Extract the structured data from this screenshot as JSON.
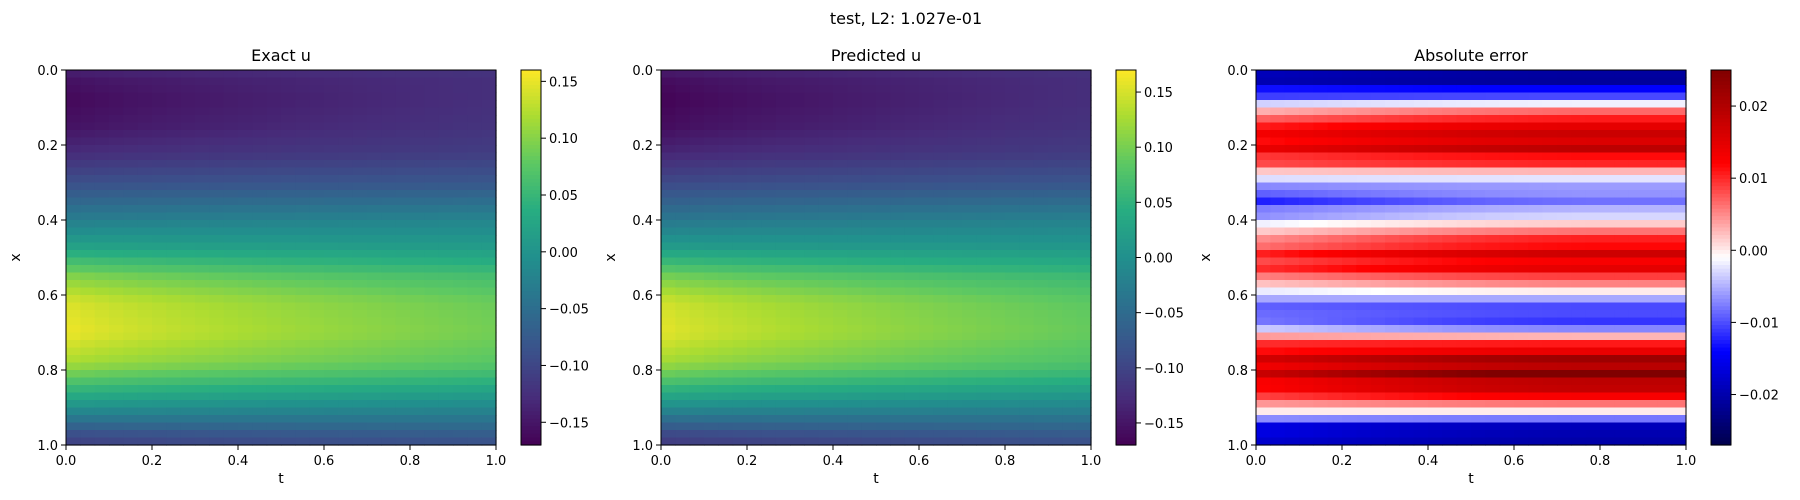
{
  "figure": {
    "title": "test, L2: 1.027e-01"
  },
  "chart_data": [
    {
      "type": "heatmap",
      "title": "Exact u",
      "xlabel": "t",
      "ylabel": "x",
      "xlim": [
        0.0,
        1.0
      ],
      "ylim": [
        1.0,
        0.0
      ],
      "xticks": [
        "0.0",
        "0.2",
        "0.4",
        "0.6",
        "0.8",
        "1.0"
      ],
      "yticks": [
        "0.0",
        "0.2",
        "0.4",
        "0.6",
        "0.8",
        "1.0"
      ],
      "colormap": "viridis",
      "color_range": [
        -0.17,
        0.16
      ],
      "colorbar_ticks": [
        "0.15",
        "0.10",
        "0.05",
        "0.00",
        "−0.05",
        "−0.10",
        "−0.15"
      ],
      "profile_x": [
        0.0,
        0.03,
        0.08,
        0.15,
        0.22,
        0.3,
        0.4,
        0.47,
        0.55,
        0.62,
        0.7,
        0.78,
        0.82,
        0.88,
        0.93,
        0.97,
        1.0
      ],
      "profile_u_t0": [
        -0.14,
        -0.155,
        -0.165,
        -0.155,
        -0.13,
        -0.09,
        -0.03,
        0.02,
        0.1,
        0.145,
        0.155,
        0.12,
        0.08,
        0.02,
        -0.04,
        -0.09,
        -0.11
      ],
      "profile_u_t1": [
        -0.12,
        -0.125,
        -0.125,
        -0.12,
        -0.11,
        -0.08,
        -0.02,
        0.01,
        0.06,
        0.085,
        0.09,
        0.075,
        0.05,
        0.0,
        -0.04,
        -0.07,
        -0.09
      ]
    },
    {
      "type": "heatmap",
      "title": "Predicted u",
      "xlabel": "t",
      "ylabel": "x",
      "xlim": [
        0.0,
        1.0
      ],
      "ylim": [
        1.0,
        0.0
      ],
      "xticks": [
        "0.0",
        "0.2",
        "0.4",
        "0.6",
        "0.8",
        "1.0"
      ],
      "yticks": [
        "0.0",
        "0.2",
        "0.4",
        "0.6",
        "0.8",
        "1.0"
      ],
      "colormap": "viridis",
      "color_range": [
        -0.17,
        0.17
      ],
      "colorbar_ticks": [
        "0.15",
        "0.10",
        "0.05",
        "0.00",
        "−0.05",
        "−0.10",
        "−0.15"
      ],
      "profile_x": [
        0.0,
        0.03,
        0.08,
        0.15,
        0.22,
        0.3,
        0.4,
        0.47,
        0.55,
        0.62,
        0.7,
        0.78,
        0.82,
        0.88,
        0.93,
        0.97,
        1.0
      ],
      "profile_u_t0": [
        -0.145,
        -0.16,
        -0.17,
        -0.16,
        -0.135,
        -0.095,
        -0.035,
        0.015,
        0.1,
        0.15,
        0.16,
        0.125,
        0.085,
        0.02,
        -0.045,
        -0.095,
        -0.115
      ],
      "profile_u_t1": [
        -0.12,
        -0.125,
        -0.125,
        -0.12,
        -0.11,
        -0.08,
        -0.02,
        0.01,
        0.06,
        0.085,
        0.09,
        0.075,
        0.05,
        0.0,
        -0.04,
        -0.07,
        -0.09
      ]
    },
    {
      "type": "heatmap",
      "title": "Absolute error",
      "xlabel": "t",
      "ylabel": "x",
      "xlim": [
        0.0,
        1.0
      ],
      "ylim": [
        1.0,
        0.0
      ],
      "xticks": [
        "0.0",
        "0.2",
        "0.4",
        "0.6",
        "0.8",
        "1.0"
      ],
      "yticks": [
        "0.0",
        "0.2",
        "0.4",
        "0.6",
        "0.8",
        "1.0"
      ],
      "colormap": "seismic",
      "color_range": [
        -0.027,
        0.025
      ],
      "colorbar_ticks": [
        "0.02",
        "0.01",
        "0.00",
        "−0.01",
        "−0.02"
      ],
      "profile_x": [
        0.0,
        0.02,
        0.05,
        0.09,
        0.12,
        0.16,
        0.2,
        0.24,
        0.27,
        0.3,
        0.34,
        0.38,
        0.42,
        0.46,
        0.5,
        0.54,
        0.58,
        0.61,
        0.65,
        0.69,
        0.72,
        0.76,
        0.8,
        0.84,
        0.88,
        0.91,
        0.94,
        0.97,
        1.0
      ],
      "profile_err_t0": [
        -0.018,
        -0.02,
        -0.015,
        -0.004,
        0.006,
        0.012,
        0.013,
        0.01,
        0.002,
        -0.005,
        -0.012,
        -0.008,
        0.0,
        0.006,
        0.01,
        0.008,
        0.0,
        -0.006,
        -0.01,
        -0.004,
        0.008,
        0.014,
        0.016,
        0.013,
        0.007,
        0.0,
        -0.012,
        -0.018,
        -0.016
      ],
      "profile_err_mid": [
        -0.02,
        -0.022,
        -0.016,
        -0.002,
        0.01,
        0.016,
        0.018,
        0.012,
        0.003,
        -0.005,
        -0.008,
        -0.005,
        0.004,
        0.012,
        0.016,
        0.012,
        0.003,
        -0.006,
        -0.012,
        -0.008,
        0.008,
        0.018,
        0.024,
        0.02,
        0.01,
        0.0,
        -0.014,
        -0.022,
        -0.018
      ]
    }
  ]
}
